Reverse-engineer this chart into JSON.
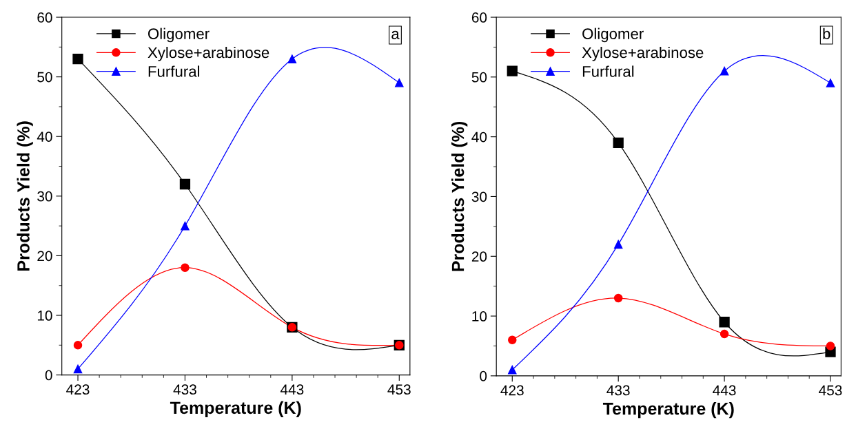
{
  "chart_data": [
    {
      "type": "line",
      "xlabel": "Temperature (K)",
      "ylabel": "Products Yield (%)",
      "annotations": [
        "a"
      ],
      "x": [
        423,
        433,
        443,
        453
      ],
      "xlim": [
        421.5,
        454
      ],
      "xticks": [
        423,
        433,
        443,
        453
      ],
      "ylim": [
        0,
        60
      ],
      "yticks": [
        0,
        10,
        20,
        30,
        40,
        50,
        60
      ],
      "legend": "top left",
      "grid": false,
      "series": [
        {
          "name": "Oligomer",
          "color": "#000000",
          "marker": "square",
          "values": [
            53,
            32,
            8,
            5
          ]
        },
        {
          "name": "Xylose+arabinose",
          "color": "#ff0000",
          "marker": "circle",
          "values": [
            5,
            18,
            8,
            5
          ]
        },
        {
          "name": "Furfural",
          "color": "#0000ff",
          "marker": "triangle",
          "values": [
            1,
            25,
            53,
            49
          ]
        }
      ]
    },
    {
      "type": "line",
      "xlabel": "Temperature (K)",
      "ylabel": "Products Yield (%)",
      "annotations": [
        "b"
      ],
      "x": [
        423,
        433,
        443,
        453
      ],
      "xlim": [
        421.5,
        454
      ],
      "xticks": [
        423,
        433,
        443,
        453
      ],
      "ylim": [
        0,
        60
      ],
      "yticks": [
        0,
        10,
        20,
        30,
        40,
        50,
        60
      ],
      "legend": "top left",
      "grid": false,
      "series": [
        {
          "name": "Oligomer",
          "color": "#000000",
          "marker": "square",
          "values": [
            51,
            39,
            9,
            4
          ]
        },
        {
          "name": "Xylose+arabinose",
          "color": "#ff0000",
          "marker": "circle",
          "values": [
            6,
            13,
            7,
            5
          ]
        },
        {
          "name": "Furfural",
          "color": "#0000ff",
          "marker": "triangle",
          "values": [
            1,
            22,
            51,
            49
          ]
        }
      ]
    }
  ]
}
